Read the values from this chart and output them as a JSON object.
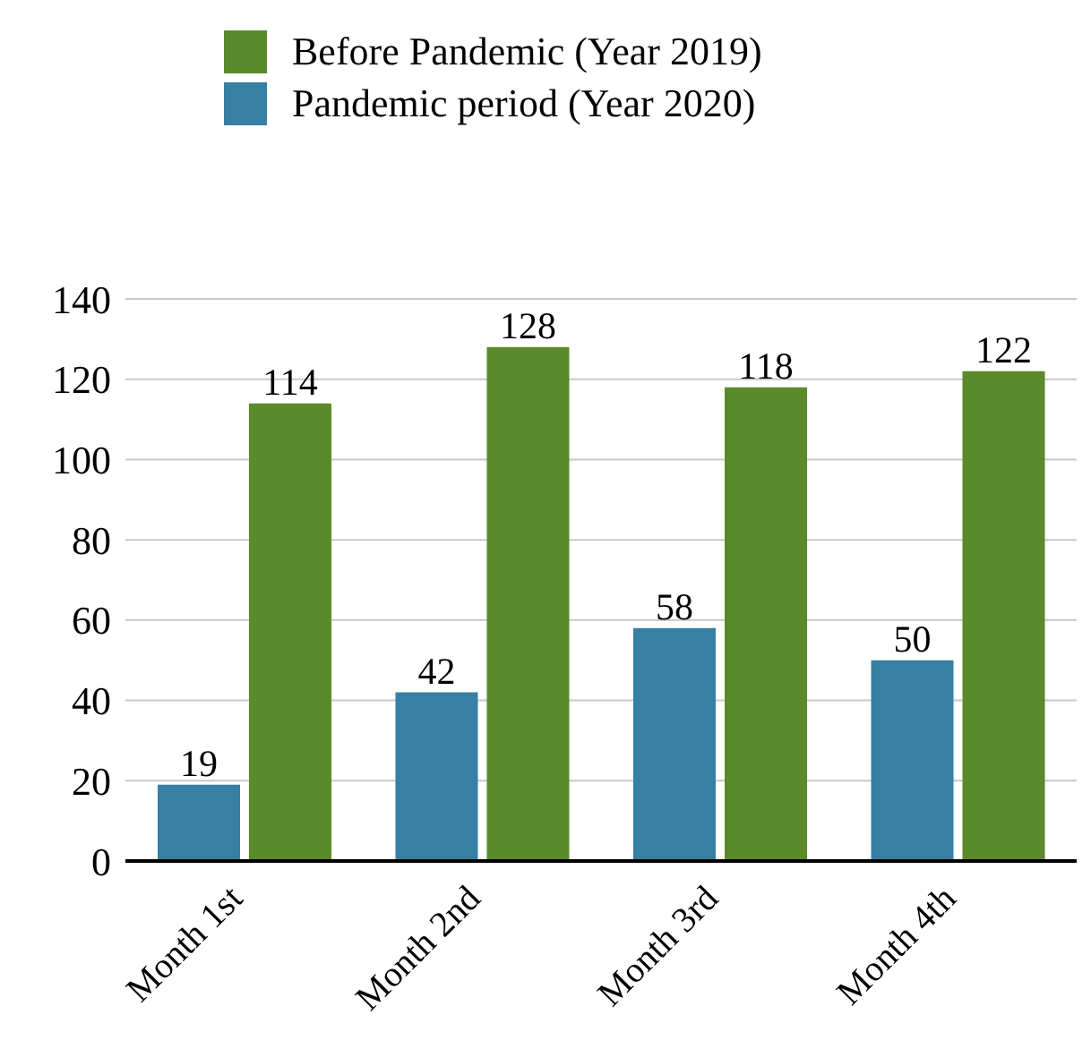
{
  "chart_data": {
    "type": "bar",
    "categories": [
      "Month 1st",
      "Month 2nd",
      "Month 3rd",
      "Month 4th"
    ],
    "series": [
      {
        "name": "Pandemic period (Year 2020)",
        "color": "#377fa3",
        "values": [
          19,
          42,
          58,
          50
        ]
      },
      {
        "name": "Before Pandemic (Year 2019)",
        "color": "#5a8a2a",
        "values": [
          114,
          128,
          118,
          122
        ]
      }
    ],
    "ylim": [
      0,
      140
    ],
    "yticks": [
      0,
      20,
      40,
      60,
      80,
      100,
      120,
      140
    ],
    "grid": "y",
    "legend": "top",
    "data_labels": true
  }
}
